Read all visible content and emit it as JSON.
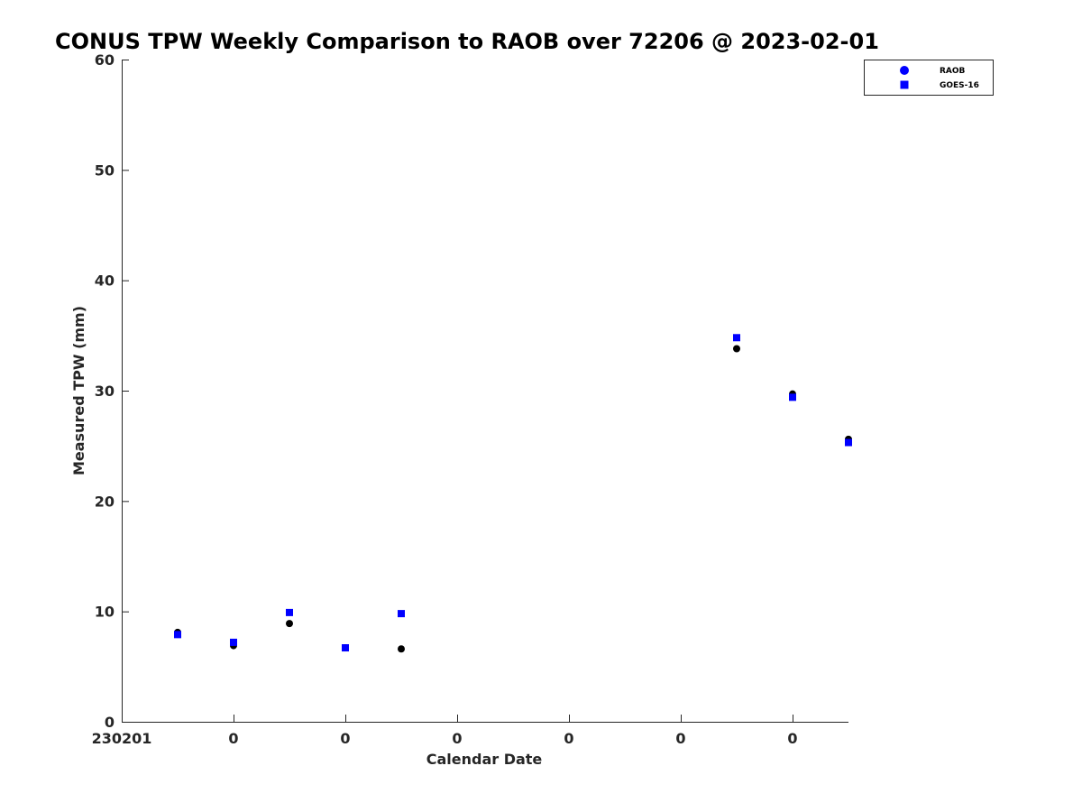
{
  "chart_data": {
    "type": "scatter",
    "title": "CONUS TPW Weekly Comparison to RAOB over 72206 @ 2023-02-01",
    "xlabel": "Calendar Date",
    "ylabel": "Measured TPW (mm)",
    "ylim": [
      0,
      60
    ],
    "yticks": [
      0,
      10,
      20,
      30,
      40,
      50,
      60
    ],
    "xlim": [
      0,
      13
    ],
    "xticks": [
      0,
      2,
      4,
      6,
      8,
      10,
      12
    ],
    "xtick_labels": [
      "230201",
      "0",
      "0",
      "0",
      "0",
      "0",
      "0"
    ],
    "grid": false,
    "legend_position": "top-right",
    "series": [
      {
        "name": "RAOB",
        "marker": "circle",
        "color": "#000000",
        "legend_color": "#0000ff",
        "x": [
          1,
          2,
          3,
          4,
          5,
          11,
          12,
          13
        ],
        "y": [
          8.1,
          6.9,
          8.9,
          6.7,
          6.6,
          33.8,
          29.7,
          25.6
        ]
      },
      {
        "name": "GOES-16",
        "marker": "square",
        "color": "#0000ff",
        "x": [
          1,
          2,
          3,
          4,
          5,
          11,
          12,
          13
        ],
        "y": [
          7.9,
          7.2,
          9.9,
          6.7,
          9.8,
          34.8,
          29.4,
          25.3
        ]
      }
    ]
  }
}
